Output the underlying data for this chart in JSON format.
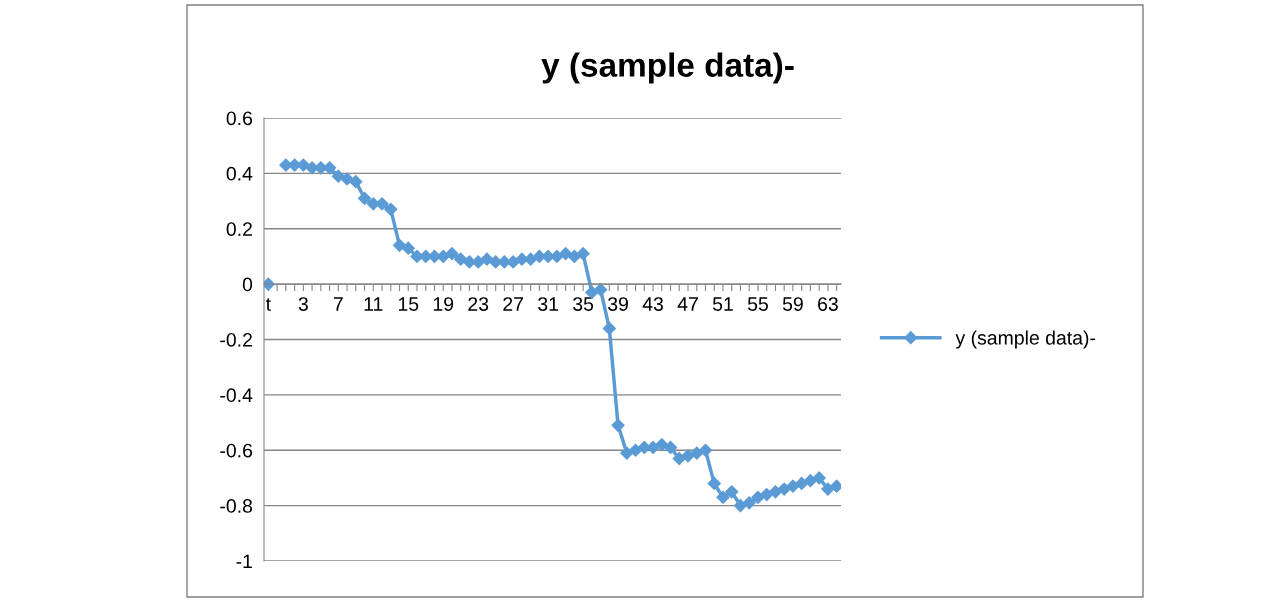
{
  "chart_data": {
    "type": "line",
    "title": "y (sample data)-",
    "categories": [
      "t",
      null,
      null,
      null,
      "3",
      null,
      null,
      null,
      "7",
      null,
      null,
      null,
      "11",
      null,
      null,
      null,
      "15",
      null,
      null,
      null,
      "19",
      null,
      null,
      null,
      "23",
      null,
      null,
      null,
      "27",
      null,
      null,
      null,
      "31",
      null,
      null,
      null,
      "35",
      null,
      null,
      null,
      "39",
      null,
      null,
      null,
      "43",
      null,
      null,
      null,
      "47",
      null,
      null,
      null,
      "51",
      null,
      null,
      null,
      "55",
      null,
      null,
      null,
      "59",
      null,
      null,
      null,
      "63",
      null
    ],
    "series": [
      {
        "name": "y (sample data)-",
        "color": "#5b9bd5",
        "values": [
          0,
          null,
          0.43,
          0.43,
          0.43,
          0.42,
          0.42,
          0.42,
          0.39,
          0.38,
          0.37,
          0.31,
          0.29,
          0.29,
          0.27,
          0.14,
          0.13,
          0.1,
          0.1,
          0.1,
          0.1,
          0.11,
          0.09,
          0.08,
          0.08,
          0.09,
          0.08,
          0.08,
          0.08,
          0.09,
          0.09,
          0.1,
          0.1,
          0.1,
          0.11,
          0.1,
          0.11,
          -0.03,
          -0.02,
          -0.16,
          -0.51,
          -0.61,
          -0.6,
          -0.59,
          -0.59,
          -0.58,
          -0.59,
          -0.63,
          -0.62,
          -0.61,
          -0.6,
          -0.72,
          -0.77,
          -0.75,
          -0.8,
          -0.79,
          -0.77,
          -0.76,
          -0.75,
          -0.74,
          -0.73,
          -0.72,
          -0.71,
          -0.7,
          -0.74,
          -0.73
        ]
      }
    ],
    "ylim": [
      -1,
      0.6
    ],
    "yticks": [
      -1,
      -0.8,
      -0.6,
      -0.4,
      -0.2,
      0,
      0.2,
      0.4,
      0.6
    ],
    "grid": "y",
    "legend": "right",
    "marker": "diamond",
    "line_style": "solid"
  }
}
